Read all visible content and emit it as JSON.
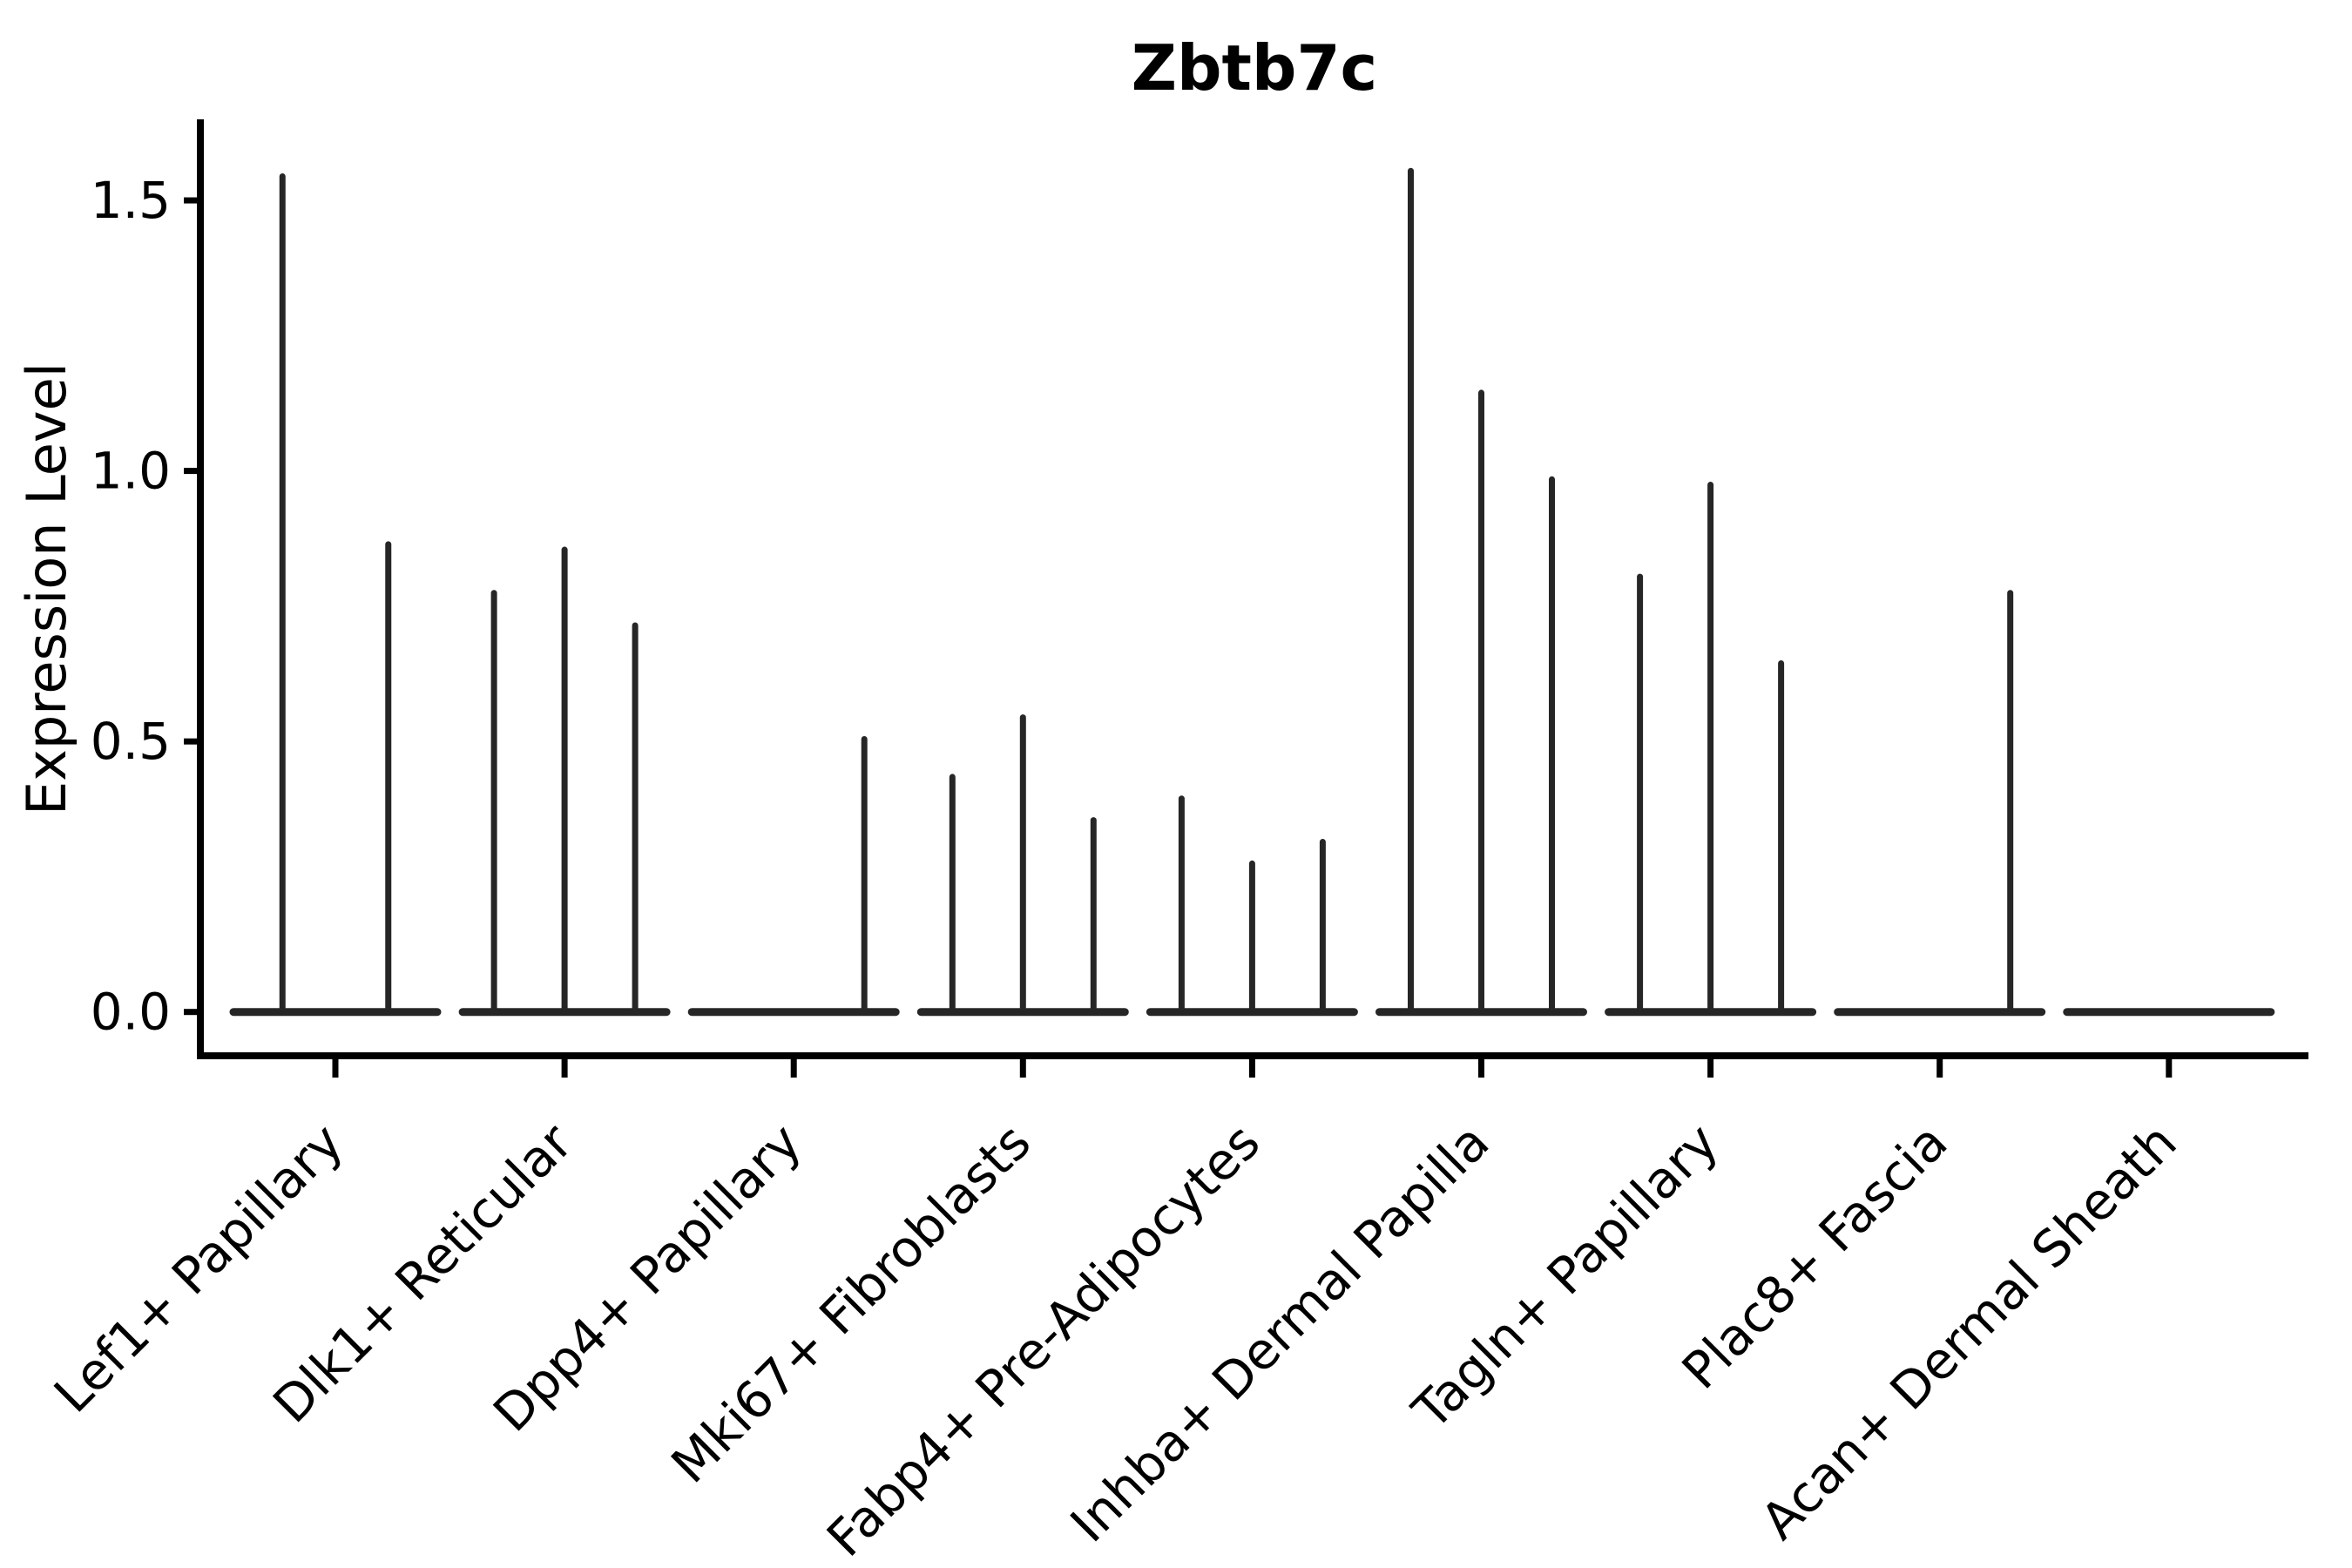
{
  "figure": {
    "title": "Zbtb7c",
    "y_axis_label": "Expression Level"
  },
  "colors": {
    "violin": "#262626",
    "axis": "#000000",
    "text": "#000000",
    "background": "#ffffff"
  },
  "chart_data": {
    "type": "violin",
    "title": "Zbtb7c",
    "xlabel": "",
    "ylabel": "Expression Level",
    "ylim": [
      -0.08,
      1.64
    ],
    "yticks": [
      "0.0",
      "0.5",
      "1.0",
      "1.5"
    ],
    "ytick_values": [
      0.0,
      0.5,
      1.0,
      1.5
    ],
    "grid": false,
    "legend": false,
    "x_labels_rotation_deg": -45,
    "categories": [
      {
        "label": "Lef1+ Papillary",
        "violin_peaks": [
          1.55,
          0.87
        ]
      },
      {
        "label": "Dlk1+ Reticular",
        "violin_peaks": [
          0.78,
          0.86,
          0.72
        ]
      },
      {
        "label": "Dpp4+ Papillary",
        "violin_peaks": [
          0,
          0,
          0.51
        ]
      },
      {
        "label": "Mki67+ Fibroblasts",
        "violin_peaks": [
          0.44,
          0.55,
          0.36
        ]
      },
      {
        "label": "Fabp4+ Pre-Adipocytes",
        "violin_peaks": [
          0.4,
          0.28,
          0.32
        ]
      },
      {
        "label": "Inhba+ Dermal Papilla",
        "violin_peaks": [
          1.56,
          1.15,
          0.99
        ]
      },
      {
        "label": "Tagln+ Papillary",
        "violin_peaks": [
          0.81,
          0.98,
          0.65
        ]
      },
      {
        "label": "Plac8+ Fascia",
        "violin_peaks": [
          0,
          0,
          0.78
        ]
      },
      {
        "label": "Acan+ Dermal Sheath",
        "violin_peaks": [
          0,
          0,
          0
        ]
      }
    ],
    "description": "Single-cell violin plot of Zbtb7c expression per fibroblast cluster; most cells have zero expression so each violin collapses to a flat base line at 0 with a thin spike up to the group's maximum expression level."
  }
}
